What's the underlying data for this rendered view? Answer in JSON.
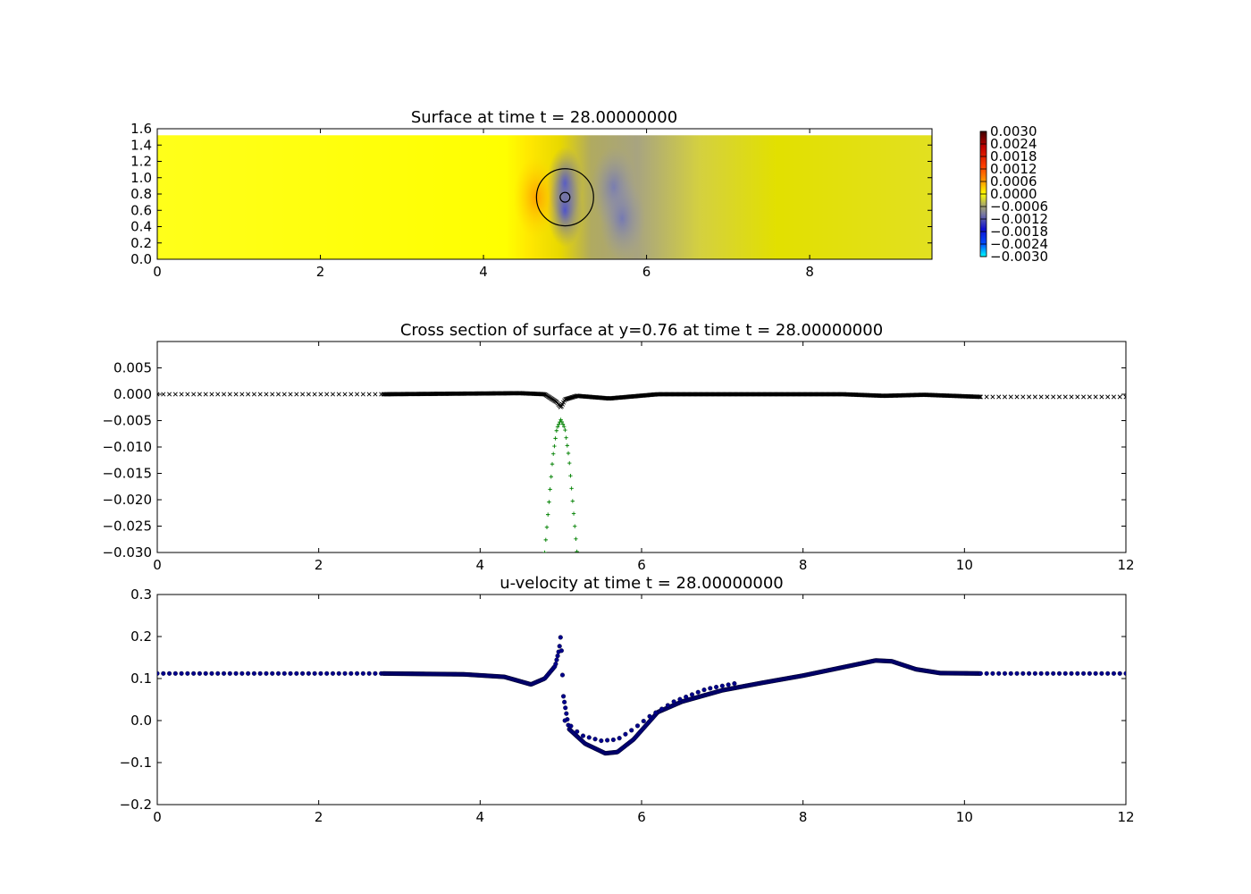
{
  "chart_data": [
    {
      "type": "heatmap",
      "title": "Surface at time t =    28.00000000",
      "xlim": [
        0,
        9.5
      ],
      "ylim": [
        0,
        1.6
      ],
      "xticks": [
        "0",
        "2",
        "4",
        "6",
        "8"
      ],
      "yticks": [
        "0.0",
        "0.2",
        "0.4",
        "0.6",
        "0.8",
        "1.0",
        "1.2",
        "1.4",
        "1.6"
      ],
      "domain_ymax": 1.52,
      "colorbar": {
        "range": [
          -0.003,
          0.003
        ],
        "ticks": [
          "0.0030",
          "0.0024",
          "0.0018",
          "0.0012",
          "0.0006",
          "0.0000",
          "−0.0006",
          "−0.0012",
          "−0.0018",
          "−0.0024",
          "−0.0030"
        ]
      },
      "features": [
        {
          "x": 4.65,
          "y": 0.76,
          "value": 0.0005
        },
        {
          "x": 5.0,
          "y": 0.93,
          "value": -0.002
        },
        {
          "x": 5.0,
          "y": 0.6,
          "value": -0.002
        },
        {
          "x": 5.6,
          "y": 0.88,
          "value": -0.0014
        },
        {
          "x": 5.7,
          "y": 0.5,
          "value": -0.0009
        }
      ],
      "circles": [
        {
          "cx": 5.0,
          "cy": 0.76,
          "r": 0.35
        },
        {
          "cx": 5.0,
          "cy": 0.76,
          "r": 0.06
        }
      ]
    },
    {
      "type": "scatter",
      "title": "Cross section of surface at y=0.76 at time t =    28.00000000",
      "xlim": [
        0,
        12
      ],
      "ylim": [
        -0.03,
        0.01
      ],
      "xticks": [
        "0",
        "2",
        "4",
        "6",
        "8",
        "10",
        "12"
      ],
      "yticks": [
        {
          "value": 0.005,
          "label": "0.005"
        },
        {
          "value": 0.0,
          "label": "0.000"
        },
        {
          "value": -0.005,
          "label": "−0.005"
        },
        {
          "value": -0.01,
          "label": "−0.010"
        },
        {
          "value": -0.015,
          "label": "−0.015"
        },
        {
          "value": -0.02,
          "label": "−0.020"
        },
        {
          "value": -0.025,
          "label": "−0.025"
        },
        {
          "value": -0.03,
          "label": "−0.030"
        }
      ],
      "series": [
        {
          "marker": "x",
          "color": "#000000",
          "x": [
            0,
            2.8,
            4.5,
            4.8,
            4.95,
            5.0,
            5.05,
            5.2,
            5.6,
            5.9,
            6.2,
            8.5,
            9.0,
            9.5,
            10.2,
            12.0
          ],
          "y": [
            0.0,
            0.0,
            0.0002,
            0.0,
            -0.0015,
            -0.0025,
            -0.001,
            -0.0003,
            -0.0008,
            -0.0004,
            0.0,
            0.0,
            -0.0003,
            -0.0001,
            -0.0005,
            -0.0005
          ]
        },
        {
          "marker": "+",
          "color": "#008000",
          "x": [
            4.8,
            4.9,
            4.95,
            5.0,
            5.05,
            5.1,
            5.2
          ],
          "y": [
            -0.03,
            -0.012,
            -0.0065,
            -0.0048,
            -0.0065,
            -0.012,
            -0.03
          ]
        }
      ]
    },
    {
      "type": "scatter",
      "title": "u-velocity at time t =    28.00000000",
      "xlim": [
        0,
        12
      ],
      "ylim": [
        -0.2,
        0.3
      ],
      "xticks": [
        "0",
        "2",
        "4",
        "6",
        "8",
        "10",
        "12"
      ],
      "yticks": [
        {
          "value": 0.3,
          "label": "0.3"
        },
        {
          "value": 0.2,
          "label": "0.2"
        },
        {
          "value": 0.1,
          "label": "0.1"
        },
        {
          "value": 0.0,
          "label": "0.0"
        },
        {
          "value": -0.1,
          "label": "−0.1"
        },
        {
          "value": -0.2,
          "label": "−0.2"
        }
      ],
      "series": [
        {
          "marker": "o",
          "color": "#00008b",
          "x": [
            0,
            2.8,
            3.8,
            4.3,
            4.63,
            4.8,
            4.93,
            4.98,
            5.0,
            5.03,
            5.1,
            5.3,
            5.55,
            5.7,
            5.9,
            6.2,
            6.5,
            7.0,
            7.5,
            8.0,
            8.5,
            8.9,
            9.1,
            9.4,
            9.7,
            10.2,
            12.0
          ],
          "y": [
            0.112,
            0.112,
            0.11,
            0.104,
            0.086,
            0.1,
            0.13,
            0.17,
            0.205,
            0.06,
            -0.02,
            -0.055,
            -0.078,
            -0.075,
            -0.045,
            0.02,
            0.045,
            0.072,
            0.09,
            0.107,
            0.127,
            0.143,
            0.141,
            0.122,
            0.113,
            0.112,
            0.112
          ]
        },
        {
          "marker": "o",
          "color": "#00008b",
          "x": [
            5.05,
            5.25,
            5.5,
            5.7,
            5.9,
            6.1,
            6.4,
            6.8,
            7.2
          ],
          "y": [
            0.0,
            -0.035,
            -0.048,
            -0.045,
            -0.02,
            0.01,
            0.045,
            0.075,
            0.09
          ]
        }
      ]
    }
  ]
}
